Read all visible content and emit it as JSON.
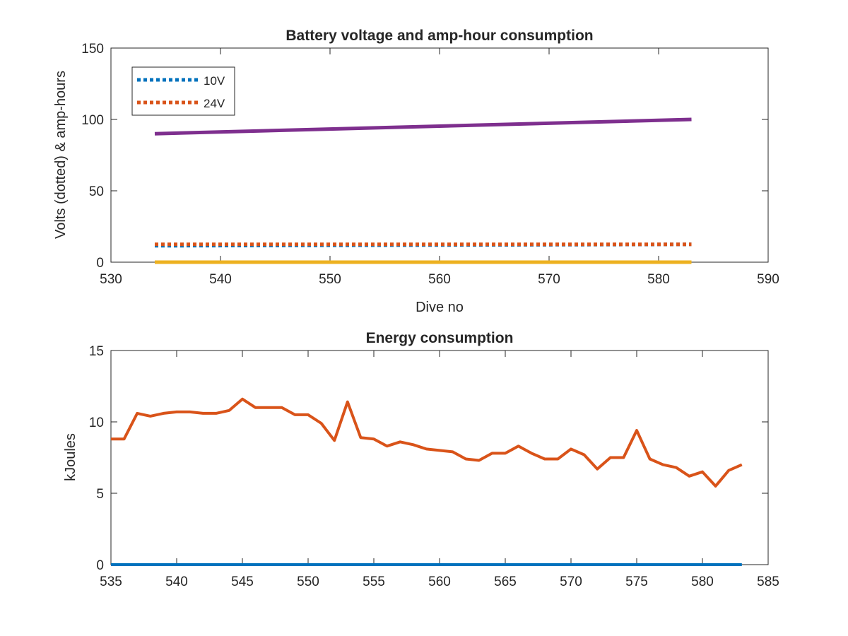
{
  "chart_data": [
    {
      "type": "line",
      "title": "Battery voltage and amp-hour consumption",
      "xlabel": "Dive no",
      "ylabel": "Volts (dotted) & amp-hours",
      "xlim": [
        530,
        590
      ],
      "ylim": [
        0,
        150
      ],
      "xticks": [
        "530",
        "540",
        "550",
        "560",
        "570",
        "580",
        "590"
      ],
      "yticks": [
        "0",
        "50",
        "100",
        "150"
      ],
      "legend": {
        "placement": "top-left",
        "entries": [
          "10V",
          "24V"
        ]
      },
      "series": [
        {
          "name": "10V",
          "style": "dotted",
          "color": "#0072BD",
          "x": [
            534,
            583
          ],
          "y": [
            11.5,
            12.5
          ]
        },
        {
          "name": "24V",
          "style": "dotted",
          "color": "#D95319",
          "x": [
            534,
            583
          ],
          "y": [
            12.5,
            12.5
          ]
        },
        {
          "style": "solid",
          "color": "#7E2F8E",
          "x": [
            534,
            583
          ],
          "y": [
            90,
            100
          ]
        },
        {
          "style": "solid",
          "color": "#EDB120",
          "x": [
            534,
            583
          ],
          "y": [
            0,
            0
          ]
        }
      ]
    },
    {
      "type": "line",
      "title": "Energy consumption",
      "xlabel": "",
      "ylabel": "kJoules",
      "xlim": [
        535,
        585
      ],
      "ylim": [
        0,
        15
      ],
      "xticks": [
        "535",
        "540",
        "545",
        "550",
        "555",
        "560",
        "565",
        "570",
        "575",
        "580",
        "585"
      ],
      "yticks": [
        "0",
        "5",
        "10",
        "15"
      ],
      "series": [
        {
          "color": "#D95319",
          "x": [
            535,
            536,
            537,
            538,
            539,
            540,
            541,
            542,
            543,
            544,
            545,
            546,
            547,
            548,
            549,
            550,
            551,
            552,
            553,
            554,
            555,
            556,
            557,
            558,
            559,
            560,
            561,
            562,
            563,
            564,
            565,
            566,
            567,
            568,
            569,
            570,
            571,
            572,
            573,
            574,
            575,
            576,
            577,
            578,
            579,
            580,
            581,
            582,
            583
          ],
          "y": [
            8.8,
            8.8,
            10.6,
            10.4,
            10.6,
            10.7,
            10.7,
            10.6,
            10.6,
            10.8,
            11.6,
            11.0,
            11.0,
            11.0,
            10.5,
            10.5,
            9.9,
            8.7,
            11.4,
            8.9,
            8.8,
            8.3,
            8.6,
            8.4,
            8.1,
            8.0,
            7.9,
            7.4,
            7.3,
            7.8,
            7.8,
            8.3,
            7.8,
            7.4,
            7.4,
            8.1,
            7.7,
            6.7,
            7.5,
            7.5,
            9.4,
            7.4,
            7.0,
            6.8,
            6.2,
            6.5,
            5.5,
            6.6,
            7.0
          ]
        },
        {
          "color": "#0072BD",
          "x": [
            535,
            583
          ],
          "y": [
            0,
            0
          ]
        }
      ]
    }
  ]
}
